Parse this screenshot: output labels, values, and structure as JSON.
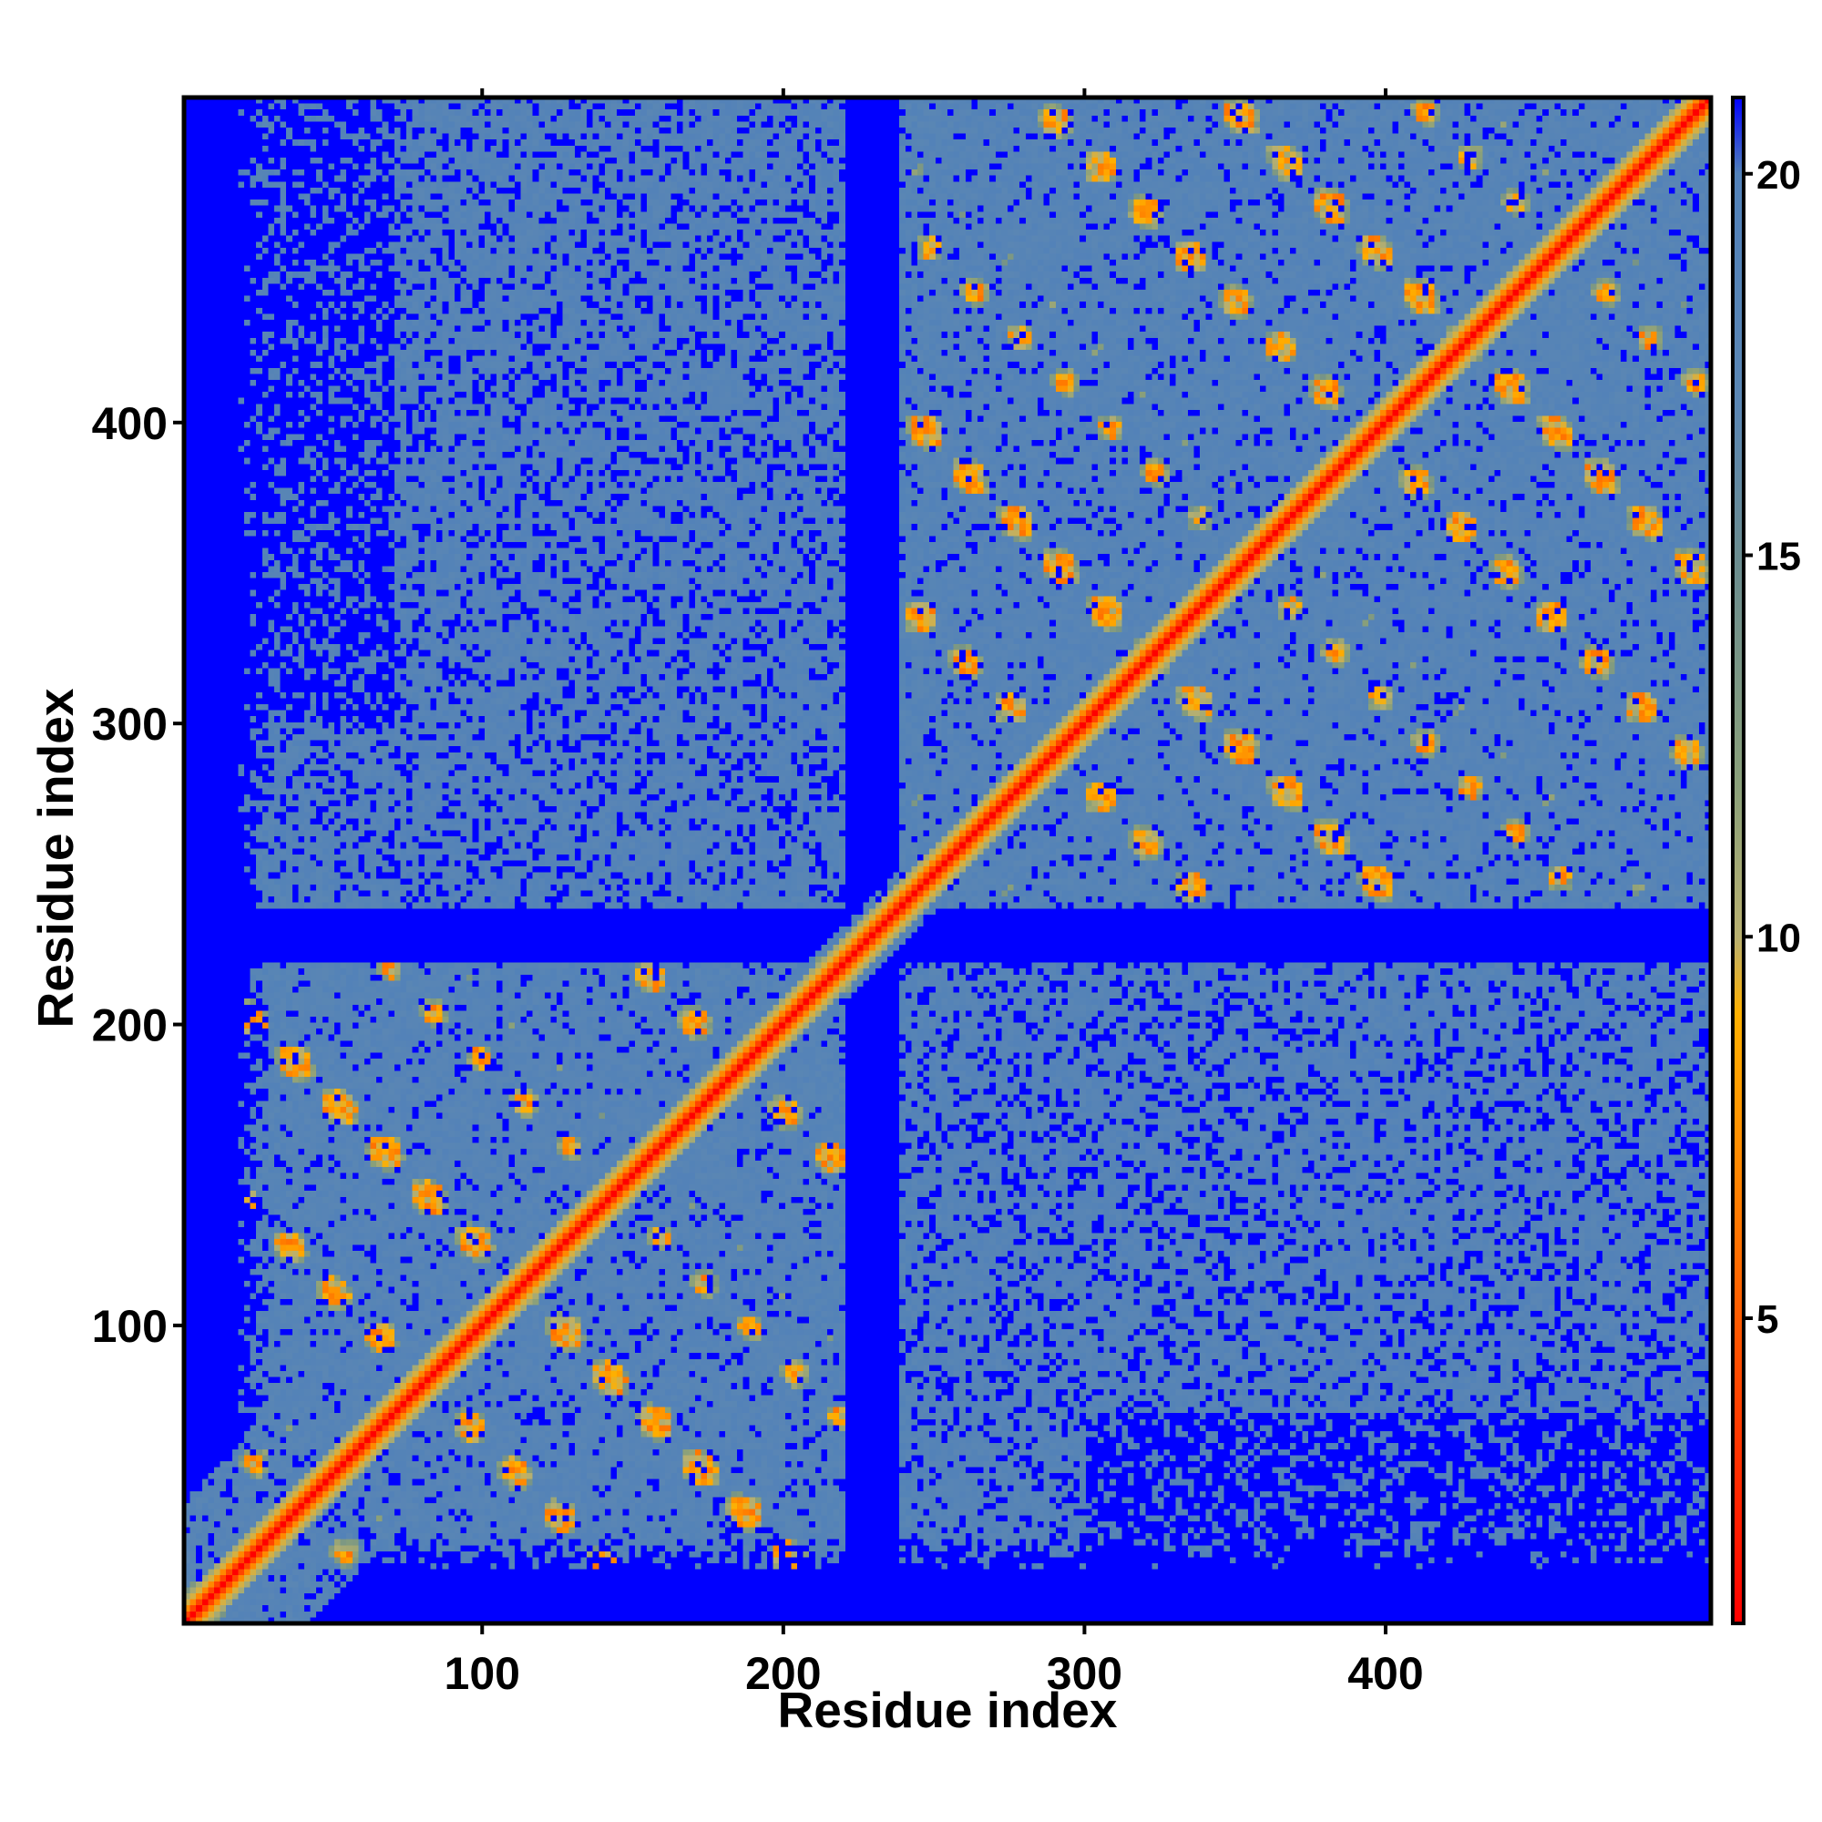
{
  "chart_data": {
    "type": "heatmap",
    "title": "",
    "xlabel": "Residue index",
    "ylabel": "Residue index",
    "xlim": [
      1,
      508
    ],
    "ylim": [
      1,
      508
    ],
    "x_ticks": [
      100,
      200,
      300,
      400
    ],
    "y_ticks": [
      100,
      200,
      300,
      400
    ],
    "colorbar": {
      "range": [
        1,
        21
      ],
      "ticks": [
        5,
        10,
        15,
        20
      ],
      "tick_labels": [
        "5",
        "10",
        "15",
        "20"
      ],
      "colors": [
        {
          "value": 1,
          "color": "#ff0000"
        },
        {
          "value": 7,
          "color": "#ff8800"
        },
        {
          "value": 9,
          "color": "#ffb000"
        },
        {
          "value": 10,
          "color": "#b8b070"
        },
        {
          "value": 12,
          "color": "#8aa07a"
        },
        {
          "value": 15,
          "color": "#6a8c90"
        },
        {
          "value": 17,
          "color": "#5a86b4"
        },
        {
          "value": 20,
          "color": "#5181b9"
        },
        {
          "value": 21,
          "color": "#0000ff"
        }
      ]
    },
    "description_values": {
      "diagonal_distance": 1,
      "background_distance": 21,
      "domains": [
        {
          "start": 1,
          "end": 228
        },
        {
          "start": 235,
          "end": 508
        }
      ],
      "gap_band": [
        220,
        238
      ]
    },
    "grid": false,
    "legend": "colorbar-right"
  },
  "colors": {
    "far": "#0000ff",
    "mid": "#5181b9",
    "near": "#ff0000",
    "frame": "#000000"
  }
}
